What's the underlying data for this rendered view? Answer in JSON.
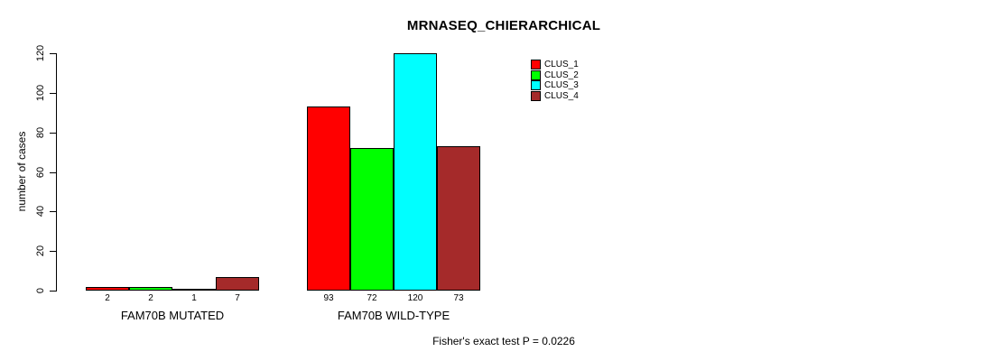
{
  "chart_data": {
    "type": "bar",
    "title": "MRNASEQ_CHIERARCHICAL",
    "xlabel": "",
    "ylabel": "number of cases",
    "ylim": [
      0,
      120
    ],
    "yticks": [
      0,
      20,
      40,
      60,
      80,
      100,
      120
    ],
    "categories": [
      "FAM70B MUTATED",
      "FAM70B WILD-TYPE"
    ],
    "series": [
      {
        "name": "CLUS_1",
        "color": "#FF0000",
        "values": [
          2,
          93
        ]
      },
      {
        "name": "CLUS_2",
        "color": "#00FF00",
        "values": [
          2,
          72
        ]
      },
      {
        "name": "CLUS_3",
        "color": "#00FFFF",
        "values": [
          1,
          120
        ]
      },
      {
        "name": "CLUS_4",
        "color": "#A52A2A",
        "values": [
          7,
          73
        ]
      }
    ],
    "bar_border_color": "#000000",
    "bar_value_labels": true,
    "grid": false,
    "legend_position": "top-right-inside",
    "footnote": "Fisher's exact test P = 0.0226"
  }
}
